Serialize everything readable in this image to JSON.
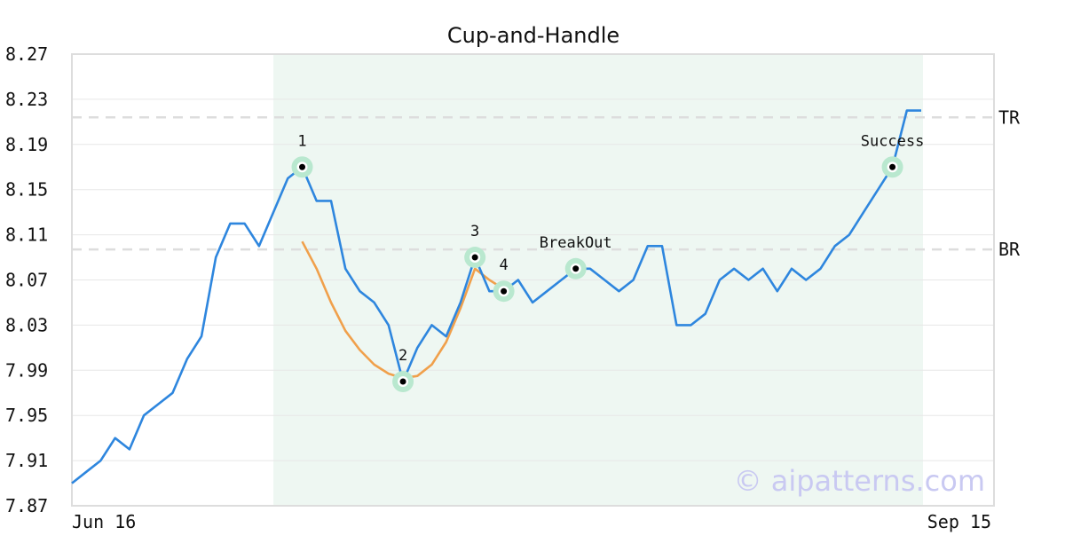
{
  "chart_data": {
    "type": "line",
    "title": "Cup-and-Handle",
    "ylim": [
      7.87,
      8.27
    ],
    "y_ticks": [
      "8.27",
      "8.23",
      "8.19",
      "8.15",
      "8.11",
      "8.07",
      "8.03",
      "7.99",
      "7.95",
      "7.91",
      "7.87"
    ],
    "x_tick_labels": [
      "Jun 16",
      "Sep 15"
    ],
    "grid": true,
    "series": [
      {
        "name": "",
        "color": "#2e86de",
        "values": [
          7.89,
          7.9,
          7.91,
          7.93,
          7.92,
          7.95,
          7.96,
          7.97,
          8.0,
          8.02,
          8.09,
          8.12,
          8.12,
          8.1,
          8.13,
          8.16,
          8.17,
          8.14,
          8.14,
          8.08,
          8.06,
          8.05,
          8.03,
          7.98,
          8.01,
          8.03,
          8.02,
          8.05,
          8.09,
          8.06,
          8.06,
          8.07,
          8.05,
          8.06,
          8.07,
          8.08,
          8.08,
          8.07,
          8.06,
          8.07,
          8.1,
          8.1,
          8.03,
          8.03,
          8.04,
          8.07,
          8.08,
          8.07,
          8.08,
          8.06,
          8.08,
          8.07,
          8.08,
          8.1,
          8.11,
          8.13,
          8.15,
          8.17,
          8.22,
          8.22
        ]
      },
      {
        "name": "",
        "color": "#f0a04b",
        "start_index": 16,
        "values": [
          8.104,
          8.08,
          8.05,
          8.025,
          8.008,
          7.995,
          7.987,
          7.983,
          7.985,
          7.995,
          8.015,
          8.045,
          8.08,
          8.07,
          8.062
        ]
      }
    ],
    "levels": [
      {
        "label": "TR",
        "value": 8.214,
        "color": "#dddddd"
      },
      {
        "label": "BR",
        "value": 8.097,
        "color": "#dddddd"
      }
    ],
    "pattern_region": {
      "start_index": 14,
      "end_index": 59,
      "color": "#eef7f2"
    },
    "annotations": [
      {
        "label": "1",
        "index": 16
      },
      {
        "label": "2",
        "index": 23
      },
      {
        "label": "3",
        "index": 28
      },
      {
        "label": "4",
        "index": 30
      },
      {
        "label": "BreakOut",
        "index": 35
      },
      {
        "label": "Success",
        "index": 57
      }
    ],
    "marker_color": "#b9e8cf",
    "watermark": "© aipatterns.com"
  }
}
